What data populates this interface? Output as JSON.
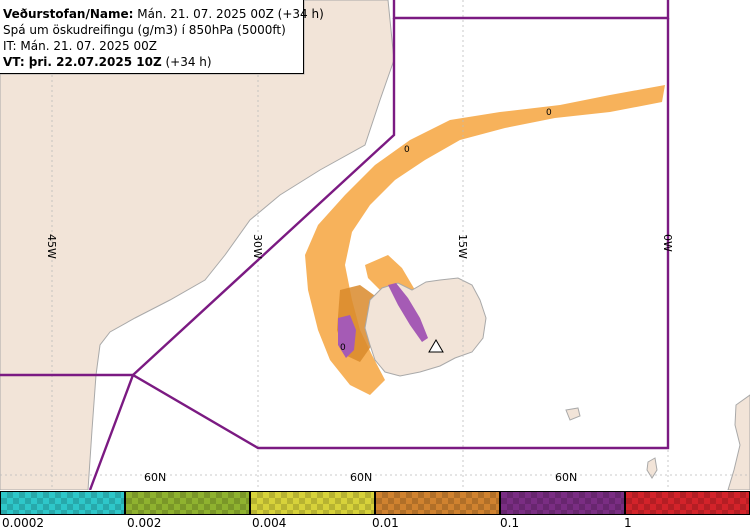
{
  "header": {
    "line1_label": "Veðurstofan/Name:",
    "line1_value": "Mán. 21. 07. 2025 00Z (+34 h)",
    "line2": "Spá um öskudreifingu (g/m3) í 850hPa (5000ft)",
    "line3": "IT: Mán. 21. 07. 2025 00Z",
    "line4_label": "VT: þri. 22.07.2025 10Z",
    "line4_value": "(+34 h)"
  },
  "map": {
    "longitude_labels": [
      "45W",
      "30W",
      "15W",
      "0W"
    ],
    "latitude_labels": [
      "60N",
      "60N",
      "60N"
    ],
    "contour_labels": [
      "0",
      "0",
      "0"
    ],
    "colors": {
      "land": "#f2e4d8",
      "sea": "#ffffff",
      "coast": "#a9a9a9",
      "fir_boundary": "#7b1a82",
      "ash_low": "#f7b25b",
      "ash_mid": "#d98a2b",
      "ash_high": "#a55bb5",
      "volcano_marker": "#ffffff"
    }
  },
  "legend": {
    "ticks": [
      "0.0002",
      "0.002",
      "0.004",
      "0.01",
      "0.1",
      "1"
    ],
    "swatch_colors": [
      "#2ec7c9",
      "#8fb22f",
      "#d7d23a",
      "#d0822f",
      "#7a2d83",
      "#d3232a"
    ]
  }
}
